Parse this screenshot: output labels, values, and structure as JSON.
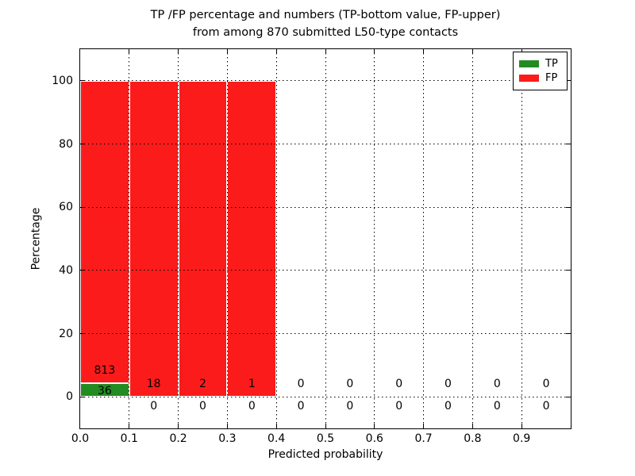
{
  "title": {
    "line1": "TP /FP percentage and numbers (TP-bottom value, FP-upper)",
    "line2": "from among 870 submitted L50-type contacts"
  },
  "axes": {
    "xlabel": "Predicted probability",
    "ylabel": "Percentage",
    "x_tick_labels": [
      "0.0",
      "0.1",
      "0.2",
      "0.3",
      "0.4",
      "0.5",
      "0.6",
      "0.7",
      "0.8",
      "0.9"
    ],
    "x_tick_values": [
      0.0,
      0.1,
      0.2,
      0.3,
      0.4,
      0.5,
      0.6,
      0.7,
      0.8,
      0.9
    ],
    "y_tick_labels": [
      "0",
      "20",
      "40",
      "60",
      "80",
      "100"
    ],
    "y_tick_values": [
      0,
      20,
      40,
      60,
      80,
      100
    ],
    "grid_style": "dotted"
  },
  "legend": {
    "entries": [
      {
        "label": "TP",
        "color": "#228b22"
      },
      {
        "label": "FP",
        "color": "#fb1b1b"
      }
    ],
    "position": "upper right"
  },
  "chart_data": {
    "type": "bar",
    "stacked": true,
    "title": "TP /FP percentage and numbers (TP-bottom value, FP-upper) from among 870 submitted L50-type contacts",
    "xlabel": "Predicted probability",
    "ylabel": "Percentage",
    "total_contacts": 870,
    "bin_starts": [
      0.0,
      0.1,
      0.2,
      0.3,
      0.4,
      0.5,
      0.6,
      0.7,
      0.8,
      0.9
    ],
    "bin_width": 0.1,
    "series": [
      {
        "name": "TP",
        "color": "#228b22",
        "counts": [
          36,
          0,
          0,
          0,
          0,
          0,
          0,
          0,
          0,
          0
        ],
        "percentages": [
          4.24,
          0,
          0,
          0,
          0,
          0,
          0,
          0,
          0,
          0
        ]
      },
      {
        "name": "FP",
        "color": "#fb1b1b",
        "counts": [
          813,
          18,
          2,
          1,
          0,
          0,
          0,
          0,
          0,
          0
        ],
        "percentages": [
          95.76,
          100,
          100,
          100,
          0,
          0,
          0,
          0,
          0,
          0
        ]
      }
    ],
    "xlim": [
      0.0,
      1.0
    ],
    "ylim": [
      -10,
      110
    ],
    "grid": true,
    "legend_position": "upper right"
  }
}
